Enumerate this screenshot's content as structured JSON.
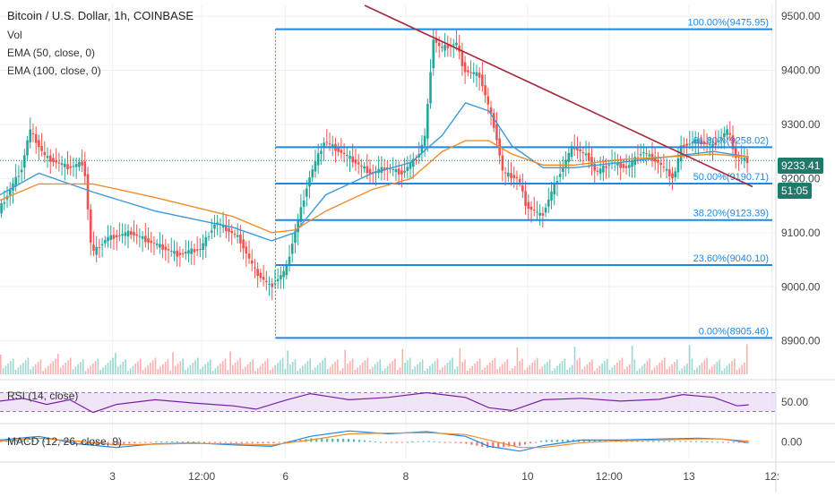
{
  "header": {
    "title": "Bitcoin / U.S. Dollar, 1h, COINBASE",
    "vol_label": "Vol",
    "ema50_label": "EMA (50, close, 0)",
    "ema100_label": "EMA (100, close, 0)",
    "rsi_label": "RSI (14, close)",
    "macd_label": "MACD (12, 26, close, 9)",
    "price_tag": "9233.41",
    "countdown_tag": "51:05"
  },
  "chart_data": {
    "type": "line",
    "title": "Bitcoin / U.S. Dollar, 1h, COINBASE",
    "x_tick_labels": [
      "3",
      "12:00",
      "6",
      "8",
      "10",
      "12:00",
      "13",
      "12:"
    ],
    "y_tick_labels": [
      "9500.00",
      "9400.00",
      "9300.00",
      "9200.00",
      "9100.00",
      "9000.00",
      "8900.00"
    ],
    "y_ticks": [
      9500,
      9400,
      9300,
      9200,
      9100,
      9000,
      8900
    ],
    "ylim": [
      8835,
      9520
    ],
    "x_range": [
      0,
      1
    ],
    "close_path": [
      [
        0,
        9140
      ],
      [
        0.03,
        9220
      ],
      [
        0.04,
        9290
      ],
      [
        0.06,
        9240
      ],
      [
        0.09,
        9220
      ],
      [
        0.11,
        9230
      ],
      [
        0.12,
        9060
      ],
      [
        0.14,
        9090
      ],
      [
        0.17,
        9100
      ],
      [
        0.2,
        9080
      ],
      [
        0.23,
        9060
      ],
      [
        0.26,
        9070
      ],
      [
        0.28,
        9120
      ],
      [
        0.31,
        9090
      ],
      [
        0.33,
        9030
      ],
      [
        0.35,
        9000
      ],
      [
        0.37,
        9030
      ],
      [
        0.38,
        9090
      ],
      [
        0.4,
        9200
      ],
      [
        0.42,
        9270
      ],
      [
        0.44,
        9250
      ],
      [
        0.46,
        9230
      ],
      [
        0.48,
        9210
      ],
      [
        0.5,
        9220
      ],
      [
        0.52,
        9210
      ],
      [
        0.54,
        9240
      ],
      [
        0.55,
        9280
      ],
      [
        0.56,
        9460
      ],
      [
        0.57,
        9440
      ],
      [
        0.59,
        9450
      ],
      [
        0.6,
        9400
      ],
      [
        0.62,
        9390
      ],
      [
        0.64,
        9290
      ],
      [
        0.65,
        9210
      ],
      [
        0.67,
        9200
      ],
      [
        0.68,
        9150
      ],
      [
        0.7,
        9130
      ],
      [
        0.72,
        9200
      ],
      [
        0.74,
        9260
      ],
      [
        0.76,
        9240
      ],
      [
        0.77,
        9210
      ],
      [
        0.79,
        9230
      ],
      [
        0.81,
        9220
      ],
      [
        0.83,
        9250
      ],
      [
        0.85,
        9230
      ],
      [
        0.87,
        9200
      ],
      [
        0.88,
        9260
      ],
      [
        0.9,
        9270
      ],
      [
        0.92,
        9260
      ],
      [
        0.94,
        9290
      ],
      [
        0.95,
        9240
      ],
      [
        0.965,
        9233
      ]
    ],
    "series": [
      {
        "name": "EMA (50, close, 0)",
        "color": "#3a9ad9",
        "points": [
          [
            0,
            9170
          ],
          [
            0.05,
            9210
          ],
          [
            0.12,
            9175
          ],
          [
            0.2,
            9140
          ],
          [
            0.3,
            9110
          ],
          [
            0.35,
            9085
          ],
          [
            0.38,
            9100
          ],
          [
            0.42,
            9170
          ],
          [
            0.48,
            9210
          ],
          [
            0.53,
            9230
          ],
          [
            0.57,
            9280
          ],
          [
            0.6,
            9340
          ],
          [
            0.63,
            9325
          ],
          [
            0.66,
            9260
          ],
          [
            0.7,
            9220
          ],
          [
            0.74,
            9220
          ],
          [
            0.8,
            9230
          ],
          [
            0.86,
            9240
          ],
          [
            0.92,
            9250
          ],
          [
            0.965,
            9240
          ]
        ]
      },
      {
        "name": "EMA (100, close, 0)",
        "color": "#f28c28",
        "points": [
          [
            0,
            9160
          ],
          [
            0.05,
            9190
          ],
          [
            0.12,
            9190
          ],
          [
            0.2,
            9165
          ],
          [
            0.3,
            9130
          ],
          [
            0.35,
            9100
          ],
          [
            0.38,
            9105
          ],
          [
            0.42,
            9140
          ],
          [
            0.48,
            9180
          ],
          [
            0.53,
            9200
          ],
          [
            0.57,
            9250
          ],
          [
            0.6,
            9270
          ],
          [
            0.63,
            9270
          ],
          [
            0.66,
            9245
          ],
          [
            0.7,
            9225
          ],
          [
            0.74,
            9225
          ],
          [
            0.8,
            9235
          ],
          [
            0.86,
            9240
          ],
          [
            0.92,
            9245
          ],
          [
            0.965,
            9240
          ]
        ]
      }
    ],
    "trendline": {
      "color": "#a52a3a",
      "points": [
        [
          0.47,
          9520
        ],
        [
          0.97,
          9185
        ]
      ]
    },
    "fib_levels": [
      {
        "label": "100.00%(9475.95)",
        "value": 9475.95
      },
      {
        "label": "61.80%(9258.02)",
        "value": 9258.02
      },
      {
        "label": "50.00%(9190.71)",
        "value": 9190.71
      },
      {
        "label": "38.20%(9123.39)",
        "value": 9123.39
      },
      {
        "label": "23.60%(9040.10)",
        "value": 9040.1
      },
      {
        "label": "0.00%(8905.46)",
        "value": 8905.46
      }
    ],
    "fib_start_x": 0.355,
    "last_price": 9233.41,
    "rsi": {
      "ytick_label": "50.00",
      "value": 50,
      "upper": 70,
      "lower": 30,
      "ylim": [
        10,
        90
      ],
      "points": [
        [
          0,
          52
        ],
        [
          0.03,
          58
        ],
        [
          0.06,
          45
        ],
        [
          0.09,
          55
        ],
        [
          0.12,
          28
        ],
        [
          0.15,
          45
        ],
        [
          0.2,
          55
        ],
        [
          0.25,
          48
        ],
        [
          0.3,
          42
        ],
        [
          0.33,
          35
        ],
        [
          0.37,
          55
        ],
        [
          0.4,
          68
        ],
        [
          0.45,
          55
        ],
        [
          0.5,
          60
        ],
        [
          0.55,
          70
        ],
        [
          0.6,
          60
        ],
        [
          0.63,
          38
        ],
        [
          0.66,
          32
        ],
        [
          0.7,
          55
        ],
        [
          0.75,
          58
        ],
        [
          0.8,
          52
        ],
        [
          0.85,
          56
        ],
        [
          0.88,
          66
        ],
        [
          0.92,
          60
        ],
        [
          0.95,
          42
        ],
        [
          0.965,
          44
        ]
      ]
    },
    "macd": {
      "ytick_label": "0.00",
      "value": 0,
      "ylim": [
        -45,
        45
      ],
      "line": [
        [
          0,
          5
        ],
        [
          0.05,
          15
        ],
        [
          0.1,
          -5
        ],
        [
          0.15,
          -15
        ],
        [
          0.2,
          -5
        ],
        [
          0.25,
          -3
        ],
        [
          0.3,
          -8
        ],
        [
          0.35,
          -12
        ],
        [
          0.4,
          15
        ],
        [
          0.45,
          30
        ],
        [
          0.5,
          22
        ],
        [
          0.55,
          28
        ],
        [
          0.6,
          15
        ],
        [
          0.63,
          -12
        ],
        [
          0.67,
          -25
        ],
        [
          0.7,
          -10
        ],
        [
          0.75,
          5
        ],
        [
          0.8,
          5
        ],
        [
          0.85,
          8
        ],
        [
          0.9,
          10
        ],
        [
          0.93,
          8
        ],
        [
          0.965,
          -2
        ]
      ],
      "signal": [
        [
          0,
          2
        ],
        [
          0.05,
          10
        ],
        [
          0.1,
          2
        ],
        [
          0.15,
          -8
        ],
        [
          0.2,
          -6
        ],
        [
          0.25,
          -4
        ],
        [
          0.3,
          -5
        ],
        [
          0.35,
          -8
        ],
        [
          0.4,
          5
        ],
        [
          0.45,
          22
        ],
        [
          0.5,
          24
        ],
        [
          0.55,
          25
        ],
        [
          0.6,
          20
        ],
        [
          0.63,
          5
        ],
        [
          0.67,
          -15
        ],
        [
          0.7,
          -15
        ],
        [
          0.75,
          -2
        ],
        [
          0.8,
          3
        ],
        [
          0.85,
          5
        ],
        [
          0.9,
          8
        ],
        [
          0.93,
          8
        ],
        [
          0.965,
          2
        ]
      ]
    },
    "colors": {
      "up": "#26a69a",
      "down": "#ef5350",
      "fib": "#1e88e5",
      "rsi_line": "#7b1fa2",
      "rsi_band": "#e9d9f5",
      "macd_line": "#1e88e5",
      "macd_signal": "#f28c28"
    }
  }
}
